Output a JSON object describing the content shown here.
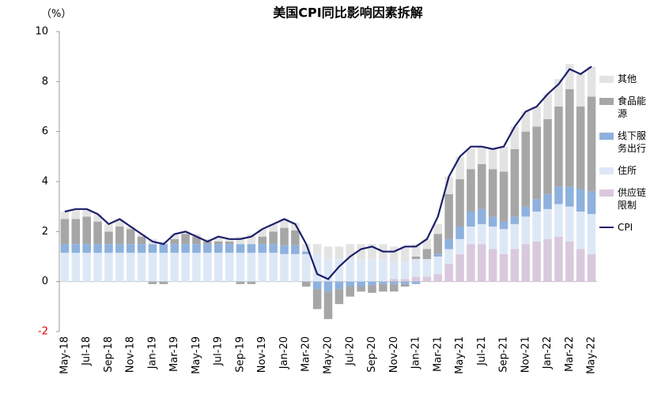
{
  "chart_data": {
    "type": "stacked_bar_line",
    "title": "美国CPI同比影响因素拆解",
    "y_unit": "（%）",
    "categories": [
      "May-18",
      null,
      "Jul-18",
      null,
      "Sep-18",
      null,
      "Nov-18",
      null,
      "Jan-19",
      null,
      "Mar-19",
      null,
      "May-19",
      null,
      "Jul-19",
      null,
      "Sep-19",
      null,
      "Nov-19",
      null,
      "Jan-20",
      null,
      "Mar-20",
      null,
      "May-20",
      null,
      "Jul-20",
      null,
      "Sep-20",
      null,
      "Nov-20",
      null,
      "Jan-21",
      null,
      "Mar-21",
      null,
      "May-21",
      null,
      "Jul-21",
      null,
      "Sep-21",
      null,
      "Nov-21",
      null,
      "Jan-22",
      null,
      "Mar-22",
      null,
      "May-22"
    ],
    "series": [
      {
        "name": "供应链限制",
        "color": "#d9c9dc",
        "values": [
          0,
          0,
          0,
          0,
          0,
          0,
          0,
          0,
          0,
          0,
          0,
          0,
          0,
          0,
          0,
          0,
          0,
          0,
          0,
          0,
          0,
          0,
          0,
          0,
          0,
          0,
          0,
          0,
          0,
          0,
          0.1,
          0.1,
          0.2,
          0.2,
          0.3,
          0.7,
          1.1,
          1.5,
          1.5,
          1.3,
          1.1,
          1.3,
          1.5,
          1.6,
          1.7,
          1.8,
          1.6,
          1.3,
          1.1
        ]
      },
      {
        "name": "住所",
        "color": "#dde8f6",
        "values": [
          1.15,
          1.15,
          1.15,
          1.15,
          1.15,
          1.15,
          1.15,
          1.15,
          1.15,
          1.15,
          1.15,
          1.15,
          1.15,
          1.15,
          1.15,
          1.15,
          1.15,
          1.15,
          1.15,
          1.15,
          1.1,
          1.1,
          1.1,
          1.1,
          0.9,
          0.9,
          0.9,
          0.9,
          0.9,
          0.9,
          0.7,
          0.7,
          0.7,
          0.7,
          0.7,
          0.6,
          0.6,
          0.7,
          0.8,
          0.9,
          1.0,
          1.0,
          1.1,
          1.2,
          1.2,
          1.3,
          1.4,
          1.5,
          1.6
        ]
      },
      {
        "name": "线下服务出行",
        "color": "#8eb1de",
        "values": [
          0.35,
          0.35,
          0.35,
          0.35,
          0.35,
          0.35,
          0.35,
          0.35,
          0.35,
          0.35,
          0.35,
          0.35,
          0.35,
          0.35,
          0.35,
          0.35,
          0.35,
          0.35,
          0.35,
          0.35,
          0.35,
          0.35,
          0.1,
          -0.3,
          -0.4,
          -0.3,
          -0.2,
          -0.2,
          -0.15,
          -0.1,
          -0.1,
          -0.1,
          -0.1,
          0,
          0.1,
          0.4,
          0.5,
          0.6,
          0.6,
          0.4,
          0.3,
          0.3,
          0.4,
          0.5,
          0.6,
          0.7,
          0.8,
          0.9,
          0.9
        ]
      },
      {
        "name": "食品能源",
        "color": "#a6a6a6",
        "values": [
          1.0,
          1.0,
          1.1,
          0.9,
          0.5,
          0.7,
          0.6,
          0.3,
          -0.1,
          -0.1,
          0.2,
          0.4,
          0.3,
          0.1,
          0.1,
          0.1,
          -0.1,
          -0.1,
          0.3,
          0.5,
          0.7,
          0.6,
          -0.2,
          -0.8,
          -1.1,
          -0.6,
          -0.4,
          -0.2,
          -0.3,
          -0.3,
          -0.3,
          -0.1,
          0.1,
          0.4,
          0.8,
          1.8,
          1.9,
          1.7,
          1.8,
          1.9,
          2.0,
          2.7,
          3.0,
          2.9,
          3.0,
          3.2,
          3.9,
          3.3,
          3.8
        ]
      },
      {
        "name": "其他",
        "color": "#e3e3e3",
        "values": [
          0.3,
          0.4,
          0.3,
          0.3,
          0.3,
          0.3,
          0.1,
          0.1,
          0.2,
          0.1,
          0.2,
          0.1,
          0.1,
          0.1,
          0.2,
          0.1,
          0.3,
          0.4,
          0.3,
          0.3,
          0.35,
          0.3,
          0.3,
          0.4,
          0.5,
          0.5,
          0.6,
          0.6,
          0.6,
          0.6,
          0.6,
          0.6,
          0.5,
          0.4,
          0.4,
          0.7,
          0.9,
          0.8,
          0.7,
          0.8,
          1.0,
          0.9,
          0.8,
          0.8,
          1.0,
          1.1,
          1.0,
          1.3,
          1.2
        ]
      }
    ],
    "line": {
      "name": "CPI",
      "color": "#1c1f6b",
      "values": [
        2.8,
        2.9,
        2.9,
        2.7,
        2.3,
        2.5,
        2.2,
        1.9,
        1.6,
        1.5,
        1.9,
        2.0,
        1.8,
        1.6,
        1.8,
        1.7,
        1.7,
        1.8,
        2.1,
        2.3,
        2.5,
        2.3,
        1.5,
        0.3,
        0.1,
        0.6,
        1.0,
        1.3,
        1.4,
        1.2,
        1.2,
        1.4,
        1.4,
        1.7,
        2.6,
        4.2,
        5.0,
        5.4,
        5.4,
        5.3,
        5.4,
        6.2,
        6.8,
        7.0,
        7.5,
        7.9,
        8.5,
        8.3,
        8.6
      ]
    },
    "ylim": [
      -2,
      10
    ],
    "yticks": [
      -2,
      0,
      2,
      4,
      6,
      8,
      10
    ],
    "negative_tick_color": "#e00000"
  }
}
